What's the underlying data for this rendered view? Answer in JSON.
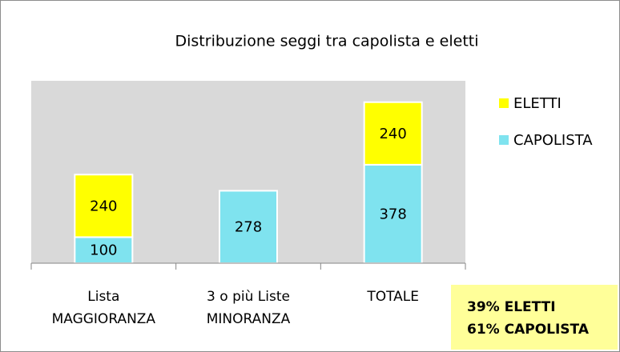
{
  "chart_data": {
    "type": "stacked_bar",
    "title": "Distribuzione seggi tra capolista e eletti",
    "categories": [
      "Lista\nMAGGIORANZA",
      "3 o più Liste\nMINORANZA",
      "TOTALE"
    ],
    "series": [
      {
        "name": "CAPOLISTA",
        "color": "#7fe3ef",
        "values": [
          100,
          278,
          378
        ]
      },
      {
        "name": "ELETTI",
        "color": "#ffff00",
        "values": [
          240,
          null,
          240
        ]
      }
    ],
    "ylim": [
      0,
      700
    ],
    "legend": "right",
    "annotations": [
      "39% ELETTI",
      "61% CAPOLISTA"
    ]
  }
}
